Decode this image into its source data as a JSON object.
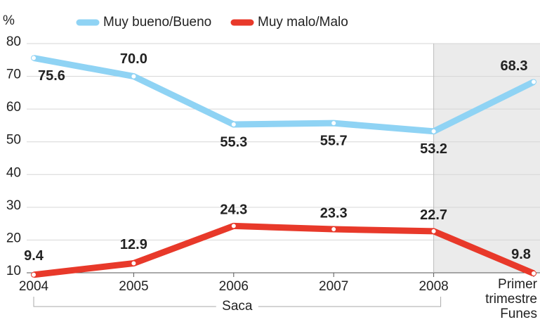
{
  "chart_data": {
    "type": "line",
    "y_unit": "%",
    "categories": [
      "2004",
      "2005",
      "2006",
      "2007",
      "2008",
      "Primer trimestre Funes"
    ],
    "series": [
      {
        "name": "Muy bueno/Bueno",
        "color": "#8fd3f4",
        "values": [
          75.6,
          70,
          55.3,
          55.7,
          53.2,
          68.3
        ],
        "value_labels": [
          "75.6",
          "70.0",
          "55.3",
          "55.7",
          "53.2",
          "68.3"
        ]
      },
      {
        "name": "Muy malo/Malo",
        "color": "#e8392a",
        "values": [
          9.4,
          12.9,
          24.3,
          23.3,
          22.7,
          9.8
        ],
        "value_labels": [
          "9.4",
          "12.9",
          "24.3",
          "23.3",
          "22.7",
          "9.8"
        ]
      }
    ],
    "ylim": [
      10,
      80
    ],
    "yticks": [
      10,
      20,
      30,
      40,
      50,
      60,
      70,
      80
    ],
    "grid": true,
    "legend": "top",
    "annotations": [
      {
        "text": "Saca",
        "from": 0,
        "to": 4
      }
    ],
    "shaded_from": 4
  }
}
